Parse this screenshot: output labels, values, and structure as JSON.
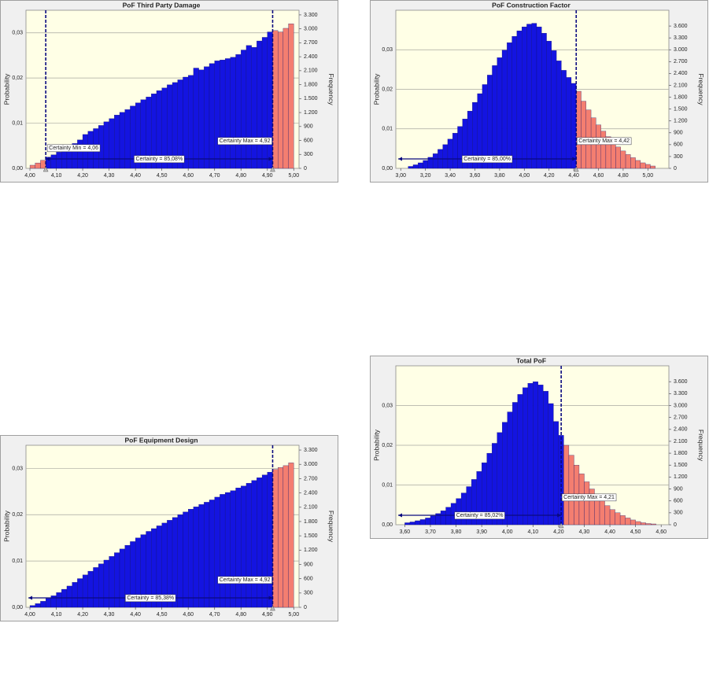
{
  "chart_data": [
    {
      "type": "histogram",
      "title": "PoF Third Party Damage",
      "y_label": "Probability",
      "y2_label": "Frequency",
      "color": "#1414e0",
      "outside_color": "#f47e70",
      "grid": true,
      "bins": [
        4,
        4.02,
        4.04,
        4.06,
        4.08,
        4.1,
        4.12,
        4.14,
        4.16,
        4.18,
        4.2,
        4.22,
        4.24,
        4.26,
        4.28,
        4.3,
        4.32,
        4.34,
        4.36,
        4.38,
        4.4,
        4.42,
        4.44,
        4.46,
        4.48,
        4.5,
        4.52,
        4.54,
        4.56,
        4.58,
        4.6,
        4.62,
        4.64,
        4.66,
        4.68,
        4.7,
        4.72,
        4.74,
        4.76,
        4.78,
        4.8,
        4.82,
        4.84,
        4.86,
        4.88,
        4.9,
        4.92,
        4.94,
        4.96,
        4.98,
        5
      ],
      "values": [
        0.0007,
        0.0012,
        0.0018,
        0.0025,
        0.003,
        0.0036,
        0.0042,
        0.0048,
        0.0055,
        0.0063,
        0.0075,
        0.0082,
        0.0088,
        0.0095,
        0.0103,
        0.011,
        0.0118,
        0.0124,
        0.013,
        0.0138,
        0.0145,
        0.0152,
        0.0158,
        0.0165,
        0.0172,
        0.0178,
        0.0185,
        0.019,
        0.0196,
        0.0202,
        0.0206,
        0.0222,
        0.0218,
        0.0225,
        0.0232,
        0.0238,
        0.024,
        0.0243,
        0.0246,
        0.0252,
        0.0262,
        0.0272,
        0.0268,
        0.0282,
        0.029,
        0.0302,
        0.0305,
        0.0302,
        0.031,
        0.032
      ],
      "xlim": [
        3.985,
        5.02
      ],
      "xticks": [
        {
          "value": 4.0,
          "label": "4,00"
        },
        {
          "value": 4.1,
          "label": "4,10"
        },
        {
          "value": 4.2,
          "label": "4,20"
        },
        {
          "value": 4.3,
          "label": "4,30"
        },
        {
          "value": 4.4,
          "label": "4,40"
        },
        {
          "value": 4.5,
          "label": "4,50"
        },
        {
          "value": 4.6,
          "label": "4,60"
        },
        {
          "value": 4.7,
          "label": "4,70"
        },
        {
          "value": 4.8,
          "label": "4,80"
        },
        {
          "value": 4.9,
          "label": "4,90"
        },
        {
          "value": 5.0,
          "label": "5,00"
        }
      ],
      "ylim": [
        0,
        0.035
      ],
      "yticks": [
        {
          "value": 0,
          "label": "0,00"
        },
        {
          "value": 0.01,
          "label": "0,01"
        },
        {
          "value": 0.02,
          "label": "0,02"
        },
        {
          "value": 0.03,
          "label": "0,03"
        }
      ],
      "y2lim": [
        0,
        3400
      ],
      "y2ticks": [
        0,
        300,
        600,
        900,
        {
          "value": 1200,
          "label": "1.200"
        },
        {
          "value": 1500,
          "label": "1.500"
        },
        {
          "value": 1800,
          "label": "1.800"
        },
        {
          "value": 2100,
          "label": "2.100"
        },
        {
          "value": 2400,
          "label": "2.400"
        },
        {
          "value": 2700,
          "label": "2.700"
        },
        {
          "value": 3000,
          "label": "3.000"
        },
        {
          "value": 3300,
          "label": "3.300"
        }
      ],
      "certainty_min": {
        "value": 4.06,
        "label": "Certainty Min = 4,06"
      },
      "certainty_max": {
        "value": 4.92,
        "label": "Certainty Max = 4,92"
      },
      "certainty_label": "Certainty = 85,08%"
    },
    {
      "type": "histogram",
      "title": "PoF Construction Factor",
      "y_label": "Probability",
      "y2_label": "Frequency",
      "color": "#1414e0",
      "outside_color": "#f47e70",
      "grid": true,
      "bins": [
        3.06,
        3.1,
        3.14,
        3.18,
        3.22,
        3.26,
        3.3,
        3.34,
        3.38,
        3.42,
        3.46,
        3.5,
        3.54,
        3.58,
        3.62,
        3.66,
        3.7,
        3.74,
        3.78,
        3.82,
        3.86,
        3.9,
        3.94,
        3.98,
        4.02,
        4.06,
        4.1,
        4.14,
        4.18,
        4.22,
        4.26,
        4.3,
        4.34,
        4.38,
        4.42,
        4.46,
        4.5,
        4.54,
        4.58,
        4.62,
        4.66,
        4.7,
        4.74,
        4.78,
        4.82,
        4.86,
        4.9,
        4.94,
        4.98,
        5.02,
        5.06
      ],
      "values": [
        0.0005,
        0.0009,
        0.0014,
        0.002,
        0.0028,
        0.0037,
        0.0048,
        0.006,
        0.0074,
        0.0089,
        0.0106,
        0.0125,
        0.0145,
        0.0167,
        0.0189,
        0.0212,
        0.0236,
        0.026,
        0.028,
        0.0299,
        0.0318,
        0.0334,
        0.0348,
        0.0358,
        0.0365,
        0.0367,
        0.0358,
        0.0342,
        0.0322,
        0.0298,
        0.0272,
        0.0248,
        0.023,
        0.0215,
        0.0195,
        0.017,
        0.0148,
        0.0128,
        0.011,
        0.0094,
        0.008,
        0.0066,
        0.0054,
        0.0044,
        0.0035,
        0.0027,
        0.002,
        0.0014,
        0.001,
        0.0006
      ],
      "xlim": [
        2.96,
        5.17
      ],
      "xticks": [
        {
          "value": 3.0,
          "label": "3,00"
        },
        {
          "value": 3.2,
          "label": "3,20"
        },
        {
          "value": 3.4,
          "label": "3,40"
        },
        {
          "value": 3.6,
          "label": "3,60"
        },
        {
          "value": 3.8,
          "label": "3,80"
        },
        {
          "value": 4.0,
          "label": "4,00"
        },
        {
          "value": 4.2,
          "label": "4,20"
        },
        {
          "value": 4.4,
          "label": "4,40"
        },
        {
          "value": 4.6,
          "label": "4,60"
        },
        {
          "value": 4.8,
          "label": "4,80"
        },
        {
          "value": 5.0,
          "label": "5,00"
        }
      ],
      "ylim": [
        0,
        0.04
      ],
      "yticks": [
        {
          "value": 0,
          "label": "0,00"
        },
        {
          "value": 0.01,
          "label": "0,01"
        },
        {
          "value": 0.02,
          "label": "0,02"
        },
        {
          "value": 0.03,
          "label": "0,03"
        }
      ],
      "y2lim": [
        0,
        4000
      ],
      "y2ticks": [
        0,
        300,
        600,
        900,
        {
          "value": 1200,
          "label": "1.200"
        },
        {
          "value": 1500,
          "label": "1.500"
        },
        {
          "value": 1800,
          "label": "1.800"
        },
        {
          "value": 2100,
          "label": "2.100"
        },
        {
          "value": 2400,
          "label": "2.400"
        },
        {
          "value": 2700,
          "label": "2.700"
        },
        {
          "value": 3000,
          "label": "3.000"
        },
        {
          "value": 3300,
          "label": "3.300"
        },
        {
          "value": 3600,
          "label": "3.600"
        }
      ],
      "certainty_max": {
        "value": 4.42,
        "label": "Certainty Max = 4,42"
      },
      "certainty_label": "Certainty = 85,00%"
    },
    {
      "type": "histogram",
      "title": "PoF Equipment Design",
      "y_label": "Probability",
      "y2_label": "Frequency",
      "color": "#1414e0",
      "outside_color": "#f47e70",
      "grid": true,
      "bins": [
        4,
        4.02,
        4.04,
        4.06,
        4.08,
        4.1,
        4.12,
        4.14,
        4.16,
        4.18,
        4.2,
        4.22,
        4.24,
        4.26,
        4.28,
        4.3,
        4.32,
        4.34,
        4.36,
        4.38,
        4.4,
        4.42,
        4.44,
        4.46,
        4.48,
        4.5,
        4.52,
        4.54,
        4.56,
        4.58,
        4.6,
        4.62,
        4.64,
        4.66,
        4.68,
        4.7,
        4.72,
        4.74,
        4.76,
        4.78,
        4.8,
        4.82,
        4.84,
        4.86,
        4.88,
        4.9,
        4.92,
        4.94,
        4.96,
        4.98,
        5
      ],
      "values": [
        0.0004,
        0.0008,
        0.0013,
        0.0019,
        0.0025,
        0.0032,
        0.0039,
        0.0046,
        0.0054,
        0.0062,
        0.007,
        0.0078,
        0.0086,
        0.0094,
        0.0102,
        0.011,
        0.0118,
        0.0126,
        0.0134,
        0.0142,
        0.015,
        0.0157,
        0.0164,
        0.017,
        0.0176,
        0.0182,
        0.0188,
        0.0194,
        0.02,
        0.0206,
        0.0212,
        0.0217,
        0.0222,
        0.0227,
        0.0232,
        0.0238,
        0.0244,
        0.0248,
        0.0252,
        0.0258,
        0.0262,
        0.0268,
        0.0274,
        0.028,
        0.0286,
        0.0292,
        0.0298,
        0.0302,
        0.0306,
        0.0312
      ],
      "xlim": [
        3.985,
        5.02
      ],
      "xticks": [
        {
          "value": 4.0,
          "label": "4,00"
        },
        {
          "value": 4.1,
          "label": "4,10"
        },
        {
          "value": 4.2,
          "label": "4,20"
        },
        {
          "value": 4.3,
          "label": "4,30"
        },
        {
          "value": 4.4,
          "label": "4,40"
        },
        {
          "value": 4.5,
          "label": "4,50"
        },
        {
          "value": 4.6,
          "label": "4,60"
        },
        {
          "value": 4.7,
          "label": "4,70"
        },
        {
          "value": 4.8,
          "label": "4,80"
        },
        {
          "value": 4.9,
          "label": "4,90"
        },
        {
          "value": 5.0,
          "label": "5,00"
        }
      ],
      "ylim": [
        0,
        0.035
      ],
      "yticks": [
        {
          "value": 0,
          "label": "0,00"
        },
        {
          "value": 0.01,
          "label": "0,01"
        },
        {
          "value": 0.02,
          "label": "0,02"
        },
        {
          "value": 0.03,
          "label": "0,03"
        }
      ],
      "y2lim": [
        0,
        3400
      ],
      "y2ticks": [
        0,
        300,
        600,
        900,
        {
          "value": 1200,
          "label": "1.200"
        },
        {
          "value": 1500,
          "label": "1.500"
        },
        {
          "value": 1800,
          "label": "1.800"
        },
        {
          "value": 2100,
          "label": "2.100"
        },
        {
          "value": 2400,
          "label": "2.400"
        },
        {
          "value": 2700,
          "label": "2.700"
        },
        {
          "value": 3000,
          "label": "3.000"
        },
        {
          "value": 3300,
          "label": "3.300"
        }
      ],
      "certainty_max": {
        "value": 4.92,
        "label": "Certainty Max = 4,92"
      },
      "certainty_label": "Certainty = 85,38%"
    },
    {
      "type": "histogram",
      "title": "Total PoF",
      "y_label": "Probability",
      "y2_label": "Frequency",
      "color": "#1414e0",
      "outside_color": "#f47e70",
      "grid": true,
      "bins": [
        3.6,
        3.62,
        3.64,
        3.66,
        3.68,
        3.7,
        3.72,
        3.74,
        3.76,
        3.78,
        3.8,
        3.82,
        3.84,
        3.86,
        3.88,
        3.9,
        3.92,
        3.94,
        3.96,
        3.98,
        4.0,
        4.02,
        4.04,
        4.06,
        4.08,
        4.1,
        4.12,
        4.14,
        4.16,
        4.18,
        4.2,
        4.22,
        4.24,
        4.26,
        4.28,
        4.3,
        4.32,
        4.34,
        4.36,
        4.38,
        4.4,
        4.42,
        4.44,
        4.46,
        4.48,
        4.5,
        4.52,
        4.54,
        4.56,
        4.58
      ],
      "values": [
        0.0005,
        0.0007,
        0.001,
        0.0013,
        0.0017,
        0.0022,
        0.0028,
        0.0035,
        0.0044,
        0.0054,
        0.0066,
        0.008,
        0.0096,
        0.0114,
        0.0134,
        0.0156,
        0.018,
        0.0205,
        0.0232,
        0.0258,
        0.0284,
        0.0308,
        0.0328,
        0.0345,
        0.0356,
        0.036,
        0.0352,
        0.0336,
        0.0305,
        0.026,
        0.0225,
        0.02,
        0.0175,
        0.015,
        0.0128,
        0.0108,
        0.009,
        0.0074,
        0.006,
        0.0048,
        0.0038,
        0.003,
        0.0023,
        0.0017,
        0.0012,
        0.0008,
        0.0005,
        0.0003,
        0.0002
      ],
      "xlim": [
        3.565,
        4.63
      ],
      "xticks": [
        {
          "value": 3.6,
          "label": "3,60"
        },
        {
          "value": 3.7,
          "label": "3,70"
        },
        {
          "value": 3.8,
          "label": "3,80"
        },
        {
          "value": 3.9,
          "label": "3,90"
        },
        {
          "value": 4.0,
          "label": "4,00"
        },
        {
          "value": 4.1,
          "label": "4,10"
        },
        {
          "value": 4.2,
          "label": "4,20"
        },
        {
          "value": 4.3,
          "label": "4,30"
        },
        {
          "value": 4.4,
          "label": "4,40"
        },
        {
          "value": 4.5,
          "label": "4,50"
        },
        {
          "value": 4.6,
          "label": "4,60"
        }
      ],
      "ylim": [
        0,
        0.04
      ],
      "yticks": [
        {
          "value": 0,
          "label": "0,00"
        },
        {
          "value": 0.01,
          "label": "0,01"
        },
        {
          "value": 0.02,
          "label": "0,02"
        },
        {
          "value": 0.03,
          "label": "0,03"
        }
      ],
      "y2lim": [
        0,
        4000
      ],
      "y2ticks": [
        0,
        300,
        600,
        900,
        {
          "value": 1200,
          "label": "1.200"
        },
        {
          "value": 1500,
          "label": "1.500"
        },
        {
          "value": 1800,
          "label": "1.800"
        },
        {
          "value": 2100,
          "label": "2.100"
        },
        {
          "value": 2400,
          "label": "2.400"
        },
        {
          "value": 2700,
          "label": "2.700"
        },
        {
          "value": 3000,
          "label": "3.000"
        },
        {
          "value": 3300,
          "label": "3.300"
        },
        {
          "value": 3600,
          "label": "3.600"
        }
      ],
      "certainty_max": {
        "value": 4.21,
        "label": "Certainty Max = 4,21"
      },
      "certainty_label": "Certainty = 85,02%"
    }
  ]
}
